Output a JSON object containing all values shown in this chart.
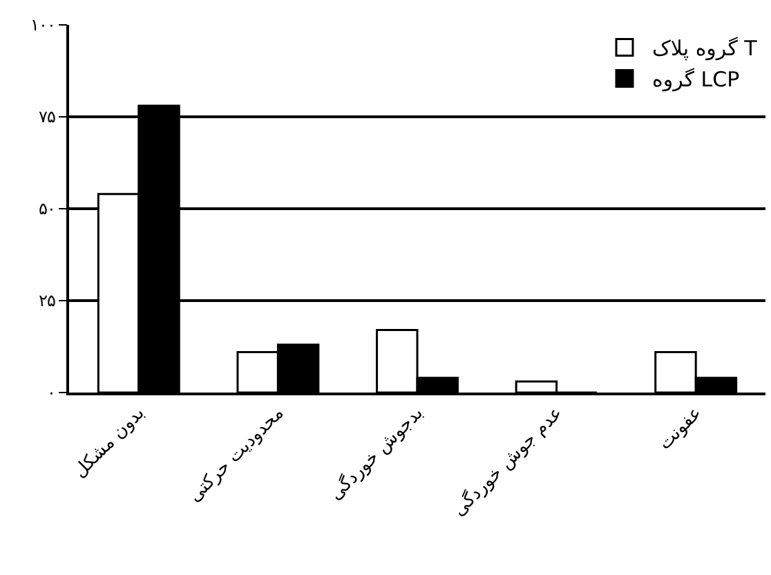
{
  "chart_data": {
    "type": "bar",
    "categories": [
      "بدون مشکل",
      "محدودیت حرکتی",
      "بدجوش خوردگی",
      "عدم جوش خوردگی",
      "عفونت"
    ],
    "series": [
      {
        "name": "گروه پلاک T",
        "color": "#ffffff",
        "values": [
          54,
          11,
          17,
          3,
          11
        ]
      },
      {
        "name": "گروه LCP",
        "color": "#000000",
        "values": [
          78,
          13,
          4,
          0,
          4
        ]
      }
    ],
    "ylim": [
      0,
      100
    ],
    "yticks": [
      {
        "value": 0,
        "label": "۰"
      },
      {
        "value": 25,
        "label": "۲۵"
      },
      {
        "value": 50,
        "label": "۵۰"
      },
      {
        "value": 75,
        "label": "۷۵"
      },
      {
        "value": 100,
        "label": "۱۰۰"
      }
    ],
    "grid": "y",
    "legend": "top right"
  }
}
